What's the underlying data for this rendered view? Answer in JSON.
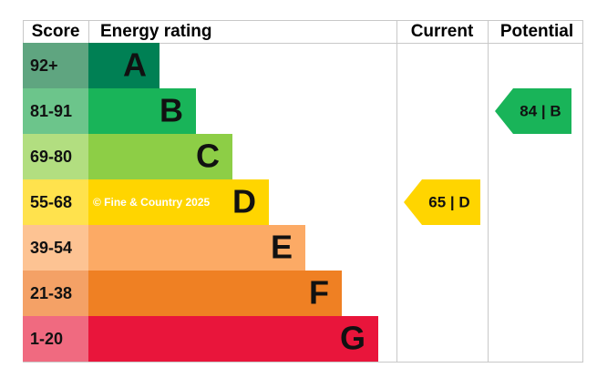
{
  "header": {
    "score": "Score",
    "rating": "Energy rating",
    "current": "Current",
    "potential": "Potential"
  },
  "bands": [
    {
      "score": "92+",
      "letter": "A",
      "color": "#008054",
      "score_color": "#5fa580"
    },
    {
      "score": "81-91",
      "letter": "B",
      "color": "#19b459",
      "score_color": "#6cc58b"
    },
    {
      "score": "69-80",
      "letter": "C",
      "color": "#8dce46",
      "score_color": "#b2de80"
    },
    {
      "score": "55-68",
      "letter": "D",
      "color": "#ffd500",
      "score_color": "#ffe24d"
    },
    {
      "score": "39-54",
      "letter": "E",
      "color": "#fcaa65",
      "score_color": "#fdc393"
    },
    {
      "score": "21-38",
      "letter": "F",
      "color": "#ef8023",
      "score_color": "#f4a166"
    },
    {
      "score": "1-20",
      "letter": "G",
      "color": "#e9153b",
      "score_color": "#f06a80"
    }
  ],
  "watermark": "© Fine & Country 2025",
  "current": {
    "value": 65,
    "label": "65 | D"
  },
  "potential": {
    "value": 84,
    "label": "84 | B"
  }
}
